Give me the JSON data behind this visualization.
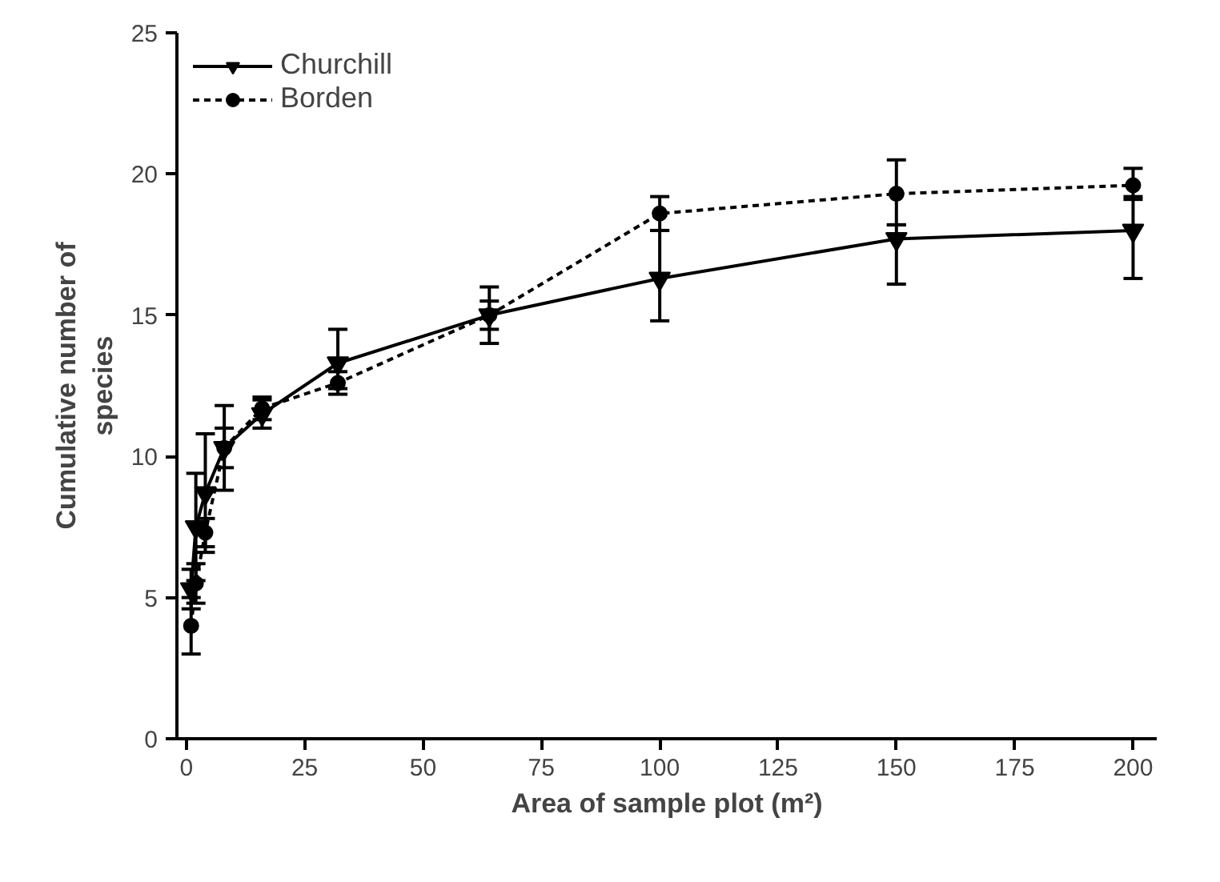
{
  "chart_data": {
    "type": "line",
    "xlabel": "Area of sample plot (m²)",
    "ylabel": "Cumulative number of species",
    "xlim": [
      -2,
      205
    ],
    "ylim": [
      0,
      25
    ],
    "xticks": [
      0,
      25,
      50,
      75,
      100,
      125,
      150,
      175,
      200
    ],
    "yticks": [
      0,
      5,
      10,
      15,
      20,
      25
    ],
    "grid": false,
    "legend": "top left",
    "series": [
      {
        "name": "Churchill",
        "color": "#000000",
        "marker": "triangle",
        "line_style": "solid",
        "x": [
          1,
          2,
          4,
          8,
          16,
          32,
          64,
          100,
          150,
          200
        ],
        "values": [
          5.3,
          7.5,
          8.7,
          10.3,
          11.5,
          13.3,
          15.0,
          16.3,
          17.7,
          18.0
        ],
        "errors": [
          [
            4.6,
            6.0
          ],
          [
            5.6,
            9.4
          ],
          [
            6.6,
            10.8
          ],
          [
            8.8,
            11.8
          ],
          [
            11.0,
            12.0
          ],
          [
            12.4,
            14.5
          ],
          [
            14.0,
            16.0
          ],
          [
            14.8,
            18.0
          ],
          [
            16.1,
            18.2
          ],
          [
            16.3,
            19.2
          ]
        ]
      },
      {
        "name": "Borden",
        "color": "#000000",
        "marker": "circle",
        "line_style": "dashed",
        "x": [
          1,
          2,
          4,
          8,
          16,
          32,
          64,
          100,
          150,
          200
        ],
        "values": [
          4.0,
          5.5,
          7.3,
          10.3,
          11.7,
          12.6,
          15.0,
          18.6,
          19.3,
          19.6
        ],
        "errors": [
          [
            3.0,
            5.0
          ],
          [
            4.8,
            6.2
          ],
          [
            6.8,
            7.8
          ],
          [
            9.6,
            11.0
          ],
          [
            11.3,
            12.1
          ],
          [
            12.2,
            13.0
          ],
          [
            14.5,
            15.5
          ],
          [
            18.0,
            19.2
          ],
          [
            18.2,
            20.5
          ],
          [
            19.1,
            20.2
          ]
        ]
      }
    ]
  }
}
